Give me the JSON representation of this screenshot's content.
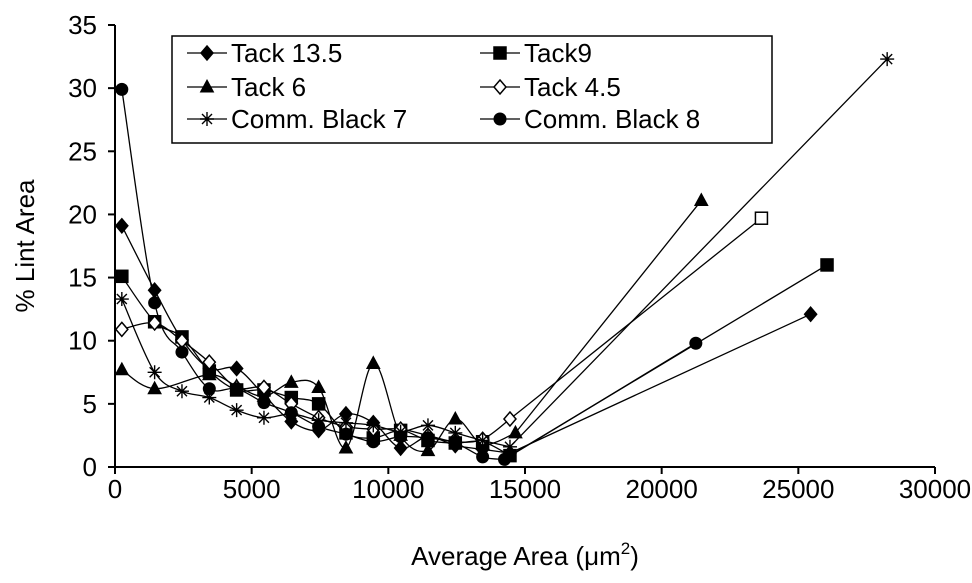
{
  "chart_data": {
    "type": "scatter",
    "xlabel": "Average Area (μm²)",
    "xlabel_main": "Average Area (",
    "xlabel_unit": "μm",
    "xlabel_sup": "2",
    "xlabel_close": ")",
    "ylabel": "% Lint Area",
    "xlim": [
      0,
      30000
    ],
    "ylim": [
      0,
      35
    ],
    "x_ticks": [
      "0",
      "5000",
      "10000",
      "15000",
      "20000",
      "25000",
      "30000"
    ],
    "y_ticks": [
      "0",
      "5",
      "10",
      "15",
      "20",
      "25",
      "30",
      "35"
    ],
    "grid": false,
    "legend_position": "top-left",
    "series": [
      {
        "name": "Tack 13.5",
        "marker": "diamond-filled",
        "x": [
          250,
          1450,
          2450,
          3450,
          4450,
          5450,
          6450,
          7450,
          8450,
          9450,
          10450,
          11450,
          12450,
          13450,
          14450,
          25450
        ],
        "y": [
          19.1,
          14.0,
          10.1,
          7.8,
          7.8,
          5.7,
          3.6,
          2.9,
          4.2,
          3.5,
          1.5,
          2.4,
          1.7,
          1.4,
          1.1,
          12.1
        ]
      },
      {
        "name": "Tack9",
        "marker": "square-filled",
        "x": [
          250,
          1450,
          2450,
          3450,
          4450,
          5450,
          6450,
          7450,
          8450,
          9450,
          10450,
          11450,
          12450,
          13450,
          14450,
          26050
        ],
        "y": [
          15.1,
          11.5,
          10.3,
          7.6,
          6.1,
          6.1,
          5.5,
          5.0,
          2.7,
          2.3,
          2.9,
          2.1,
          1.9,
          2.0,
          0.9,
          16.0
        ]
      },
      {
        "name": "Tack 6",
        "marker": "triangle-filled",
        "x": [
          250,
          1450,
          3450,
          4450,
          5450,
          6450,
          7450,
          8450,
          9450,
          10450,
          11450,
          12450,
          13450,
          14650,
          21450
        ],
        "y": [
          7.7,
          6.2,
          7.3,
          6.4,
          5.6,
          6.7,
          6.3,
          1.5,
          8.2,
          2.5,
          1.3,
          3.8,
          1.8,
          2.7,
          21.1
        ]
      },
      {
        "name": "Tack 4.5",
        "marker": "diamond-open",
        "x": [
          250,
          1450,
          2450,
          3450,
          4450,
          5450,
          6450,
          7450,
          8450,
          9450,
          10450,
          11450,
          12450,
          13450,
          14450,
          23650
        ],
        "y": [
          10.9,
          11.4,
          10.0,
          8.3,
          6.3,
          6.3,
          5.0,
          3.9,
          3.2,
          3.0,
          3.0,
          2.5,
          2.0,
          2.2,
          3.8,
          19.7
        ]
      },
      {
        "name": "Comm. Black 7",
        "marker": "asterisk",
        "x": [
          250,
          1450,
          2450,
          3450,
          4450,
          5450,
          6450,
          7450,
          8450,
          9450,
          10450,
          11450,
          12450,
          13450,
          14450,
          28250
        ],
        "y": [
          13.3,
          7.5,
          6.0,
          5.5,
          4.5,
          3.9,
          4.2,
          3.7,
          3.5,
          3.3,
          2.8,
          3.3,
          2.7,
          2.1,
          1.6,
          32.3
        ]
      },
      {
        "name": "Comm.  Black 8",
        "marker": "circle-filled",
        "x": [
          250,
          1450,
          2450,
          3450,
          4450,
          5450,
          6450,
          7450,
          8450,
          9450,
          10450,
          11450,
          12450,
          13450,
          14250,
          21250
        ],
        "y": [
          29.9,
          13.0,
          9.1,
          6.2,
          6.2,
          5.1,
          4.3,
          3.2,
          2.6,
          2.0,
          2.4,
          2.3,
          1.9,
          0.8,
          0.6,
          9.8
        ]
      }
    ]
  }
}
